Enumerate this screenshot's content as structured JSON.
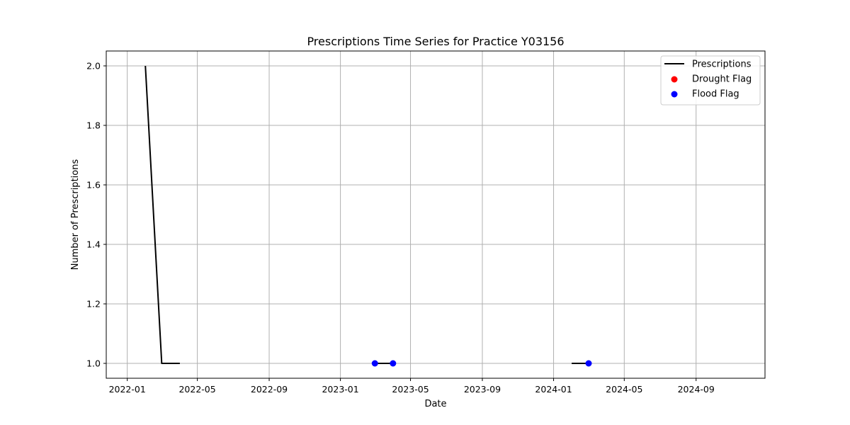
{
  "chart_data": {
    "type": "line",
    "title": "Prescriptions Time Series for Practice Y03156",
    "xlabel": "Date",
    "ylabel": "Number of Prescriptions",
    "x_axis_type": "date",
    "xlim": [
      "2021-11-26",
      "2024-12-28"
    ],
    "ylim": [
      0.95,
      2.05
    ],
    "x_ticks": [
      "2022-01-01",
      "2022-05-01",
      "2022-09-01",
      "2023-01-01",
      "2023-05-01",
      "2023-09-01",
      "2024-01-01",
      "2024-05-01",
      "2024-09-01"
    ],
    "x_tick_labels": [
      "2022-01",
      "2022-05",
      "2022-09",
      "2023-01",
      "2023-05",
      "2023-09",
      "2024-01",
      "2024-05",
      "2024-09"
    ],
    "y_ticks": [
      1.0,
      1.2,
      1.4,
      1.6,
      1.8,
      2.0
    ],
    "y_tick_labels": [
      "1.0",
      "1.2",
      "1.4",
      "1.6",
      "1.8",
      "2.0"
    ],
    "grid": true,
    "legend_position": "top-right",
    "series": [
      {
        "name": "Prescriptions",
        "kind": "line",
        "color": "#000000",
        "segments": [
          [
            {
              "x": "2022-02-01",
              "y": 2
            },
            {
              "x": "2022-03-01",
              "y": 1
            },
            {
              "x": "2022-04-01",
              "y": 1
            }
          ],
          [
            {
              "x": "2023-03-01",
              "y": 1
            },
            {
              "x": "2023-04-01",
              "y": 1
            }
          ],
          [
            {
              "x": "2024-02-01",
              "y": 1
            },
            {
              "x": "2024-03-01",
              "y": 1
            }
          ]
        ]
      },
      {
        "name": "Drought Flag",
        "kind": "scatter",
        "color": "#ff0000",
        "points": []
      },
      {
        "name": "Flood Flag",
        "kind": "scatter",
        "color": "#0000ff",
        "points": [
          {
            "x": "2023-03-01",
            "y": 1
          },
          {
            "x": "2023-04-01",
            "y": 1
          },
          {
            "x": "2024-03-01",
            "y": 1
          }
        ]
      }
    ]
  }
}
